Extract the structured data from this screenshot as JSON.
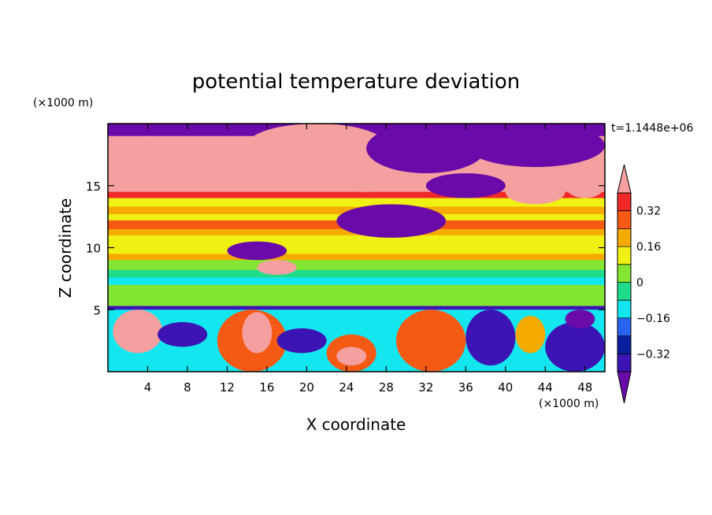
{
  "chart_data": {
    "type": "heatmap",
    "title": "potential temperature deviation",
    "xlabel": "X coordinate",
    "ylabel": "Z coordinate",
    "x_unit": "(×1000 m)",
    "y_unit": "(×1000 m)",
    "time_label": "t=1.1448e+06",
    "xlim": [
      0,
      50
    ],
    "ylim": [
      0,
      20
    ],
    "x_ticks": [
      4,
      8,
      12,
      16,
      20,
      24,
      28,
      32,
      36,
      40,
      44,
      48
    ],
    "y_ticks": [
      5,
      10,
      15
    ],
    "colorbar": {
      "levels": [
        -0.4,
        -0.32,
        -0.24,
        -0.16,
        -0.08,
        0,
        0.08,
        0.16,
        0.24,
        0.32,
        0.4
      ],
      "labels": [
        "0.32",
        "0.16",
        "0",
        "−0.16",
        "−0.32"
      ],
      "label_values": [
        0.32,
        0.16,
        0,
        -0.16,
        -0.32
      ],
      "colors": [
        "#6a0aa8",
        "#3c14b4",
        "#0a1ea0",
        "#2864f0",
        "#14e6f0",
        "#1edc8c",
        "#82e632",
        "#f0f014",
        "#f5aa00",
        "#f55a14",
        "#f02828",
        "#f5a0a0"
      ]
    },
    "bands": [
      {
        "z": [
          19.0,
          20.0
        ],
        "value": -0.45
      },
      {
        "z": [
          17.0,
          19.0
        ],
        "value": 0.45
      },
      {
        "z": [
          15.5,
          17.0
        ],
        "value": 0.45
      },
      {
        "z": [
          14.5,
          15.5
        ],
        "value": 0.44
      },
      {
        "z": [
          14.0,
          14.5
        ],
        "value": 0.35
      },
      {
        "z": [
          13.3,
          14.0
        ],
        "value": 0.12
      },
      {
        "z": [
          12.7,
          13.3
        ],
        "value": 0.2
      },
      {
        "z": [
          12.2,
          12.7
        ],
        "value": 0.12
      },
      {
        "z": [
          11.5,
          12.2
        ],
        "value": 0.3
      },
      {
        "z": [
          11.0,
          11.5
        ],
        "value": 0.2
      },
      {
        "z": [
          10.0,
          11.0
        ],
        "value": 0.1
      },
      {
        "z": [
          9.5,
          10.0
        ],
        "value": 0.15
      },
      {
        "z": [
          9.0,
          9.5
        ],
        "value": 0.2
      },
      {
        "z": [
          8.2,
          9.0
        ],
        "value": 0.06
      },
      {
        "z": [
          7.6,
          8.2
        ],
        "value": -0.02
      },
      {
        "z": [
          7.0,
          7.6
        ],
        "value": -0.1
      },
      {
        "z": [
          6.0,
          7.0
        ],
        "value": 0.02
      },
      {
        "z": [
          5.3,
          6.0
        ],
        "value": 0.04
      },
      {
        "z": [
          5.0,
          5.3
        ],
        "value": -0.35
      },
      {
        "z": [
          0.0,
          5.0
        ],
        "value": -0.1
      }
    ],
    "features": [
      {
        "x": [
          0,
          8
        ],
        "z": [
          15.5,
          19.0
        ],
        "value": 0.45
      },
      {
        "x": [
          4,
          20
        ],
        "z": [
          15.5,
          18.5
        ],
        "value": 0.45
      },
      {
        "x": [
          14,
          28
        ],
        "z": [
          16.5,
          20.0
        ],
        "value": 0.45
      },
      {
        "x": [
          20,
          32
        ],
        "z": [
          14.5,
          16.5
        ],
        "value": 0.45
      },
      {
        "x": [
          26,
          38
        ],
        "z": [
          16.0,
          20.0
        ],
        "value": -0.45
      },
      {
        "x": [
          36,
          50
        ],
        "z": [
          16.5,
          20.0
        ],
        "value": -0.45
      },
      {
        "x": [
          32,
          40
        ],
        "z": [
          14.0,
          16.0
        ],
        "value": -0.45
      },
      {
        "x": [
          40,
          46
        ],
        "z": [
          13.5,
          15.5
        ],
        "value": 0.45
      },
      {
        "x": [
          46,
          50
        ],
        "z": [
          14.0,
          16.0
        ],
        "value": 0.45
      },
      {
        "x": [
          23,
          34
        ],
        "z": [
          10.8,
          13.5
        ],
        "value": -0.45
      },
      {
        "x": [
          12,
          18
        ],
        "z": [
          9.0,
          10.5
        ],
        "value": -0.45
      },
      {
        "x": [
          15,
          19
        ],
        "z": [
          7.8,
          9.0
        ],
        "value": 0.45
      },
      {
        "x": [
          0.5,
          5.5
        ],
        "z": [
          1.5,
          5.0
        ],
        "value": 0.45
      },
      {
        "x": [
          11,
          18
        ],
        "z": [
          0.0,
          5.0
        ],
        "value": 0.3
      },
      {
        "x": [
          13.5,
          16.5
        ],
        "z": [
          1.5,
          4.8
        ],
        "value": 0.45
      },
      {
        "x": [
          5,
          10
        ],
        "z": [
          2.0,
          4.0
        ],
        "value": -0.35
      },
      {
        "x": [
          17,
          22
        ],
        "z": [
          1.5,
          3.5
        ],
        "value": -0.35
      },
      {
        "x": [
          22,
          27
        ],
        "z": [
          0.0,
          3.0
        ],
        "value": 0.3
      },
      {
        "x": [
          23,
          26
        ],
        "z": [
          0.5,
          2.0
        ],
        "value": 0.45
      },
      {
        "x": [
          29,
          36
        ],
        "z": [
          0.0,
          5.0
        ],
        "value": 0.25
      },
      {
        "x": [
          31,
          36
        ],
        "z": [
          1.0,
          4.0
        ],
        "value": 0.3
      },
      {
        "x": [
          36,
          41
        ],
        "z": [
          0.5,
          5.0
        ],
        "value": -0.4
      },
      {
        "x": [
          41,
          44
        ],
        "z": [
          1.5,
          4.5
        ],
        "value": 0.2
      },
      {
        "x": [
          44,
          50
        ],
        "z": [
          0.0,
          4.0
        ],
        "value": -0.35
      },
      {
        "x": [
          46,
          49
        ],
        "z": [
          3.5,
          5.0
        ],
        "value": -0.45
      }
    ]
  }
}
